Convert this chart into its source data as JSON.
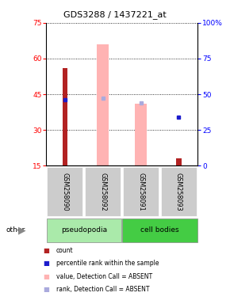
{
  "title": "GDS3288 / 1437221_at",
  "samples": [
    "GSM258090",
    "GSM258092",
    "GSM258091",
    "GSM258093"
  ],
  "ylim_left": [
    15,
    75
  ],
  "ylim_right": [
    0,
    100
  ],
  "yticks_left": [
    15,
    30,
    45,
    60,
    75
  ],
  "yticks_right": [
    0,
    25,
    50,
    75,
    100
  ],
  "bar_values": [
    56,
    null,
    null,
    18
  ],
  "bar_color": "#b22222",
  "pink_bar_values": [
    null,
    66,
    41,
    null
  ],
  "pink_bar_color": "#ffb3b3",
  "blue_dot_values": [
    46,
    null,
    null,
    34
  ],
  "blue_dot_color": "#1c1ccc",
  "light_blue_dot_values": [
    null,
    47,
    44,
    null
  ],
  "light_blue_dot_color": "#aaaadd",
  "sample_bg_color": "#cccccc",
  "group_colors": {
    "pseudopodia": "#aaeaaa",
    "cell bodies": "#44cc44"
  },
  "group_ranges": [
    [
      0,
      1,
      "pseudopodia"
    ],
    [
      2,
      3,
      "cell bodies"
    ]
  ],
  "legend_items": [
    {
      "color": "#b22222",
      "label": "count"
    },
    {
      "color": "#1c1ccc",
      "label": "percentile rank within the sample"
    },
    {
      "color": "#ffb3b3",
      "label": "value, Detection Call = ABSENT"
    },
    {
      "color": "#aaaadd",
      "label": "rank, Detection Call = ABSENT"
    }
  ]
}
